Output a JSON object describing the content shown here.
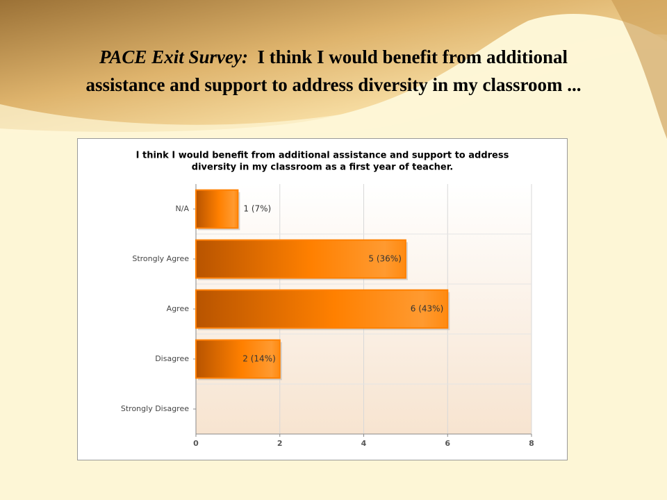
{
  "slide": {
    "title_lead": "PACE Exit Survey:",
    "title_line1": "I think I would benefit from additional",
    "title_line2": "assistance and support to address diversity in my classroom ..."
  },
  "chart_data": {
    "type": "bar",
    "orientation": "horizontal",
    "title_lines": [
      "I think I would benefit from additional assistance and support to address",
      "diversity in my classroom as a first year of teacher."
    ],
    "categories": [
      "N/A",
      "Strongly Agree",
      "Agree",
      "Disagree",
      "Strongly Disagree"
    ],
    "values": [
      1,
      5,
      6,
      2,
      0
    ],
    "value_labels": [
      "1 (7%)",
      "5 (36%)",
      "6 (43%)",
      "2 (14%)",
      null
    ],
    "color": "#ff8000",
    "xlim": [
      0,
      8
    ],
    "xticks": [
      0,
      2,
      4,
      6,
      8
    ],
    "grid": true
  }
}
